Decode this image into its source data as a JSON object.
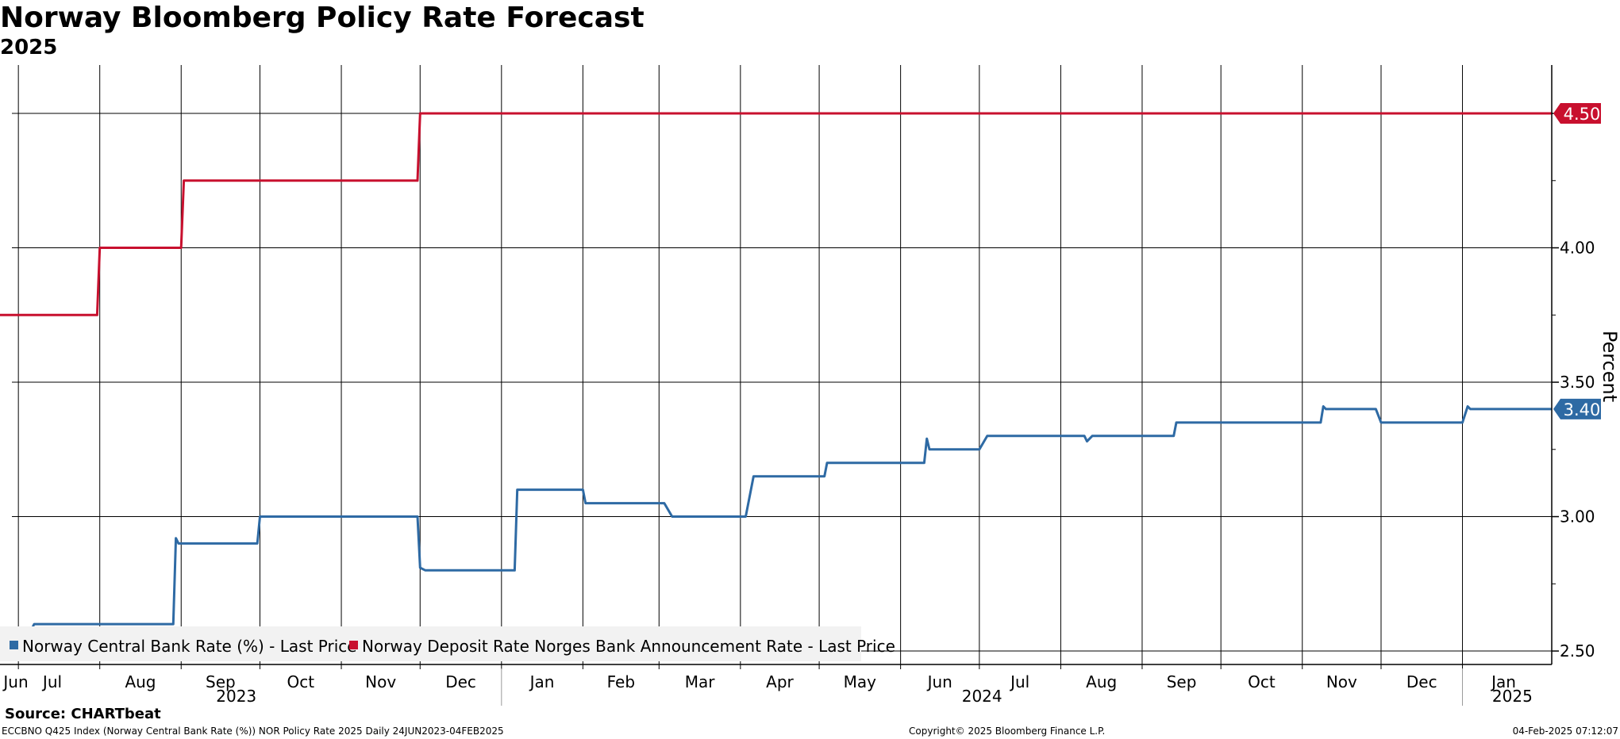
{
  "title": "Norway Bloomberg Policy Rate Forecast",
  "subtitle": "2025",
  "footer": {
    "source": "Source: CHARTbeat",
    "info": "ECCBNO Q425 Index (Norway Central Bank Rate (%)) NOR Policy Rate 2025  Daily 24JUN2023-04FEB2025",
    "copyright": "Copyright© 2025 Bloomberg Finance L.P.",
    "timestamp": "04-Feb-2025 07:12:07"
  },
  "chart_data": {
    "type": "line",
    "ylabel": "Percent",
    "ylim": [
      2.45,
      4.68
    ],
    "xlim": [
      "2023-06-24",
      "2025-02-04"
    ],
    "y_ticks": [
      "2.50",
      "3.00",
      "3.50",
      "4.00",
      "4.50"
    ],
    "grid": true,
    "legend_position": "bottom-left",
    "month_ticks": [
      {
        "label": "Jun",
        "date": "2023-06-24"
      },
      {
        "label": "Jul",
        "date": "2023-07-01"
      },
      {
        "label": "Aug",
        "date": "2023-08-01"
      },
      {
        "label": "Sep",
        "date": "2023-09-01"
      },
      {
        "label": "Oct",
        "date": "2023-10-01"
      },
      {
        "label": "Nov",
        "date": "2023-11-01"
      },
      {
        "label": "Dec",
        "date": "2023-12-01"
      },
      {
        "label": "Jan",
        "date": "2024-01-01"
      },
      {
        "label": "Feb",
        "date": "2024-02-01"
      },
      {
        "label": "Mar",
        "date": "2024-03-01"
      },
      {
        "label": "Apr",
        "date": "2024-04-01"
      },
      {
        "label": "May",
        "date": "2024-05-01"
      },
      {
        "label": "Jun",
        "date": "2024-06-01"
      },
      {
        "label": "Jul",
        "date": "2024-07-01"
      },
      {
        "label": "Aug",
        "date": "2024-08-01"
      },
      {
        "label": "Sep",
        "date": "2024-09-01"
      },
      {
        "label": "Oct",
        "date": "2024-10-01"
      },
      {
        "label": "Nov",
        "date": "2024-11-01"
      },
      {
        "label": "Dec",
        "date": "2024-12-01"
      },
      {
        "label": "Jan",
        "date": "2025-01-01"
      }
    ],
    "year_labels": [
      {
        "label": "2023",
        "date": "2023-09-22"
      },
      {
        "label": "2024",
        "date": "2024-07-02"
      },
      {
        "label": "2025",
        "date": "2025-01-20"
      }
    ],
    "year_separators": [
      "2024-01-01",
      "2025-01-01"
    ],
    "series": [
      {
        "name": "Norway Central Bank Rate (%) - Last Price",
        "color": "#2e6aa4",
        "last_value": "3.40",
        "points": [
          [
            "2023-07-06",
            2.58
          ],
          [
            "2023-07-07",
            2.6
          ],
          [
            "2023-08-29",
            2.6
          ],
          [
            "2023-08-30",
            2.92
          ],
          [
            "2023-08-31",
            2.9
          ],
          [
            "2023-09-30",
            2.9
          ],
          [
            "2023-10-01",
            3.0
          ],
          [
            "2023-11-30",
            3.0
          ],
          [
            "2023-12-01",
            2.81
          ],
          [
            "2023-12-03",
            2.8
          ],
          [
            "2024-01-06",
            2.8
          ],
          [
            "2024-01-07",
            3.1
          ],
          [
            "2024-02-01",
            3.1
          ],
          [
            "2024-02-02",
            3.05
          ],
          [
            "2024-03-03",
            3.05
          ],
          [
            "2024-03-06",
            3.0
          ],
          [
            "2024-04-03",
            3.0
          ],
          [
            "2024-04-06",
            3.15
          ],
          [
            "2024-05-03",
            3.15
          ],
          [
            "2024-05-04",
            3.2
          ],
          [
            "2024-06-10",
            3.2
          ],
          [
            "2024-06-11",
            3.29
          ],
          [
            "2024-06-12",
            3.25
          ],
          [
            "2024-07-01",
            3.25
          ],
          [
            "2024-07-04",
            3.3
          ],
          [
            "2024-08-10",
            3.3
          ],
          [
            "2024-08-11",
            3.28
          ],
          [
            "2024-08-13",
            3.3
          ],
          [
            "2024-09-13",
            3.3
          ],
          [
            "2024-09-14",
            3.35
          ],
          [
            "2024-11-08",
            3.35
          ],
          [
            "2024-11-09",
            3.41
          ],
          [
            "2024-11-10",
            3.4
          ],
          [
            "2024-11-29",
            3.4
          ],
          [
            "2024-12-01",
            3.35
          ],
          [
            "2025-01-01",
            3.35
          ],
          [
            "2025-01-03",
            3.41
          ],
          [
            "2025-01-04",
            3.4
          ],
          [
            "2025-02-04",
            3.4
          ]
        ]
      },
      {
        "name": "Norway Deposit Rate Norges Bank Announcement Rate - Last Price",
        "color": "#c8102e",
        "last_value": "4.50",
        "points": [
          [
            "2023-06-24",
            3.75
          ],
          [
            "2023-07-31",
            3.75
          ],
          [
            "2023-08-01",
            4.0
          ],
          [
            "2023-09-01",
            4.0
          ],
          [
            "2023-09-02",
            4.25
          ],
          [
            "2023-11-30",
            4.25
          ],
          [
            "2023-12-01",
            4.5
          ],
          [
            "2025-02-04",
            4.5
          ]
        ]
      }
    ]
  }
}
